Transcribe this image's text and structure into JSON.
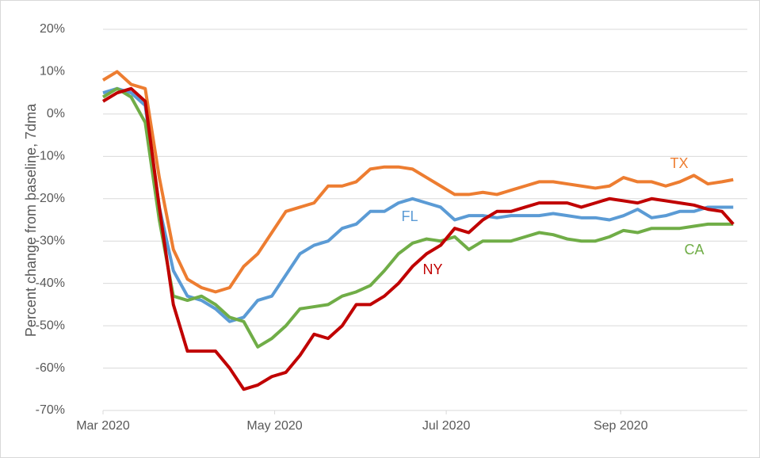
{
  "chart_data": {
    "type": "line",
    "y_label": "Percent change from baseline, 7dma",
    "x": [
      0,
      5,
      10,
      15,
      20,
      25,
      30,
      35,
      40,
      45,
      50,
      55,
      60,
      65,
      70,
      75,
      80,
      85,
      90,
      95,
      100,
      105,
      110,
      115,
      120,
      125,
      130,
      135,
      140,
      145,
      150,
      155,
      160,
      165,
      170,
      175,
      180,
      185,
      190,
      195,
      200,
      205,
      210,
      215,
      220,
      224
    ],
    "xlim": [
      0,
      229
    ],
    "xticks": [
      {
        "value": 0,
        "label": "Mar 2020"
      },
      {
        "value": 61,
        "label": "May 2020"
      },
      {
        "value": 122,
        "label": "Jul 2020"
      },
      {
        "value": 184,
        "label": "Sep 2020"
      }
    ],
    "ylim": [
      -70,
      20
    ],
    "yticks": [
      {
        "value": -70,
        "label": "-70%"
      },
      {
        "value": -60,
        "label": "-60%"
      },
      {
        "value": -50,
        "label": "-50%"
      },
      {
        "value": -40,
        "label": "-40%"
      },
      {
        "value": -30,
        "label": "-30%"
      },
      {
        "value": -20,
        "label": "-20%"
      },
      {
        "value": -10,
        "label": "-10%"
      },
      {
        "value": 0,
        "label": "0%"
      },
      {
        "value": 10,
        "label": "10%"
      },
      {
        "value": 20,
        "label": "20%"
      }
    ],
    "grid": true,
    "series": [
      {
        "name": "TX",
        "color": "#ed7d31",
        "values": [
          8,
          10,
          7,
          6,
          -15,
          -32,
          -39,
          -41,
          -42,
          -41,
          -36,
          -33,
          -28,
          -23,
          -22,
          -21,
          -17,
          -17,
          -16,
          -13,
          -12.5,
          -12.5,
          -13,
          -15,
          -17,
          -19,
          -19,
          -18.5,
          -19,
          -18,
          -17,
          -16,
          -16,
          -16.5,
          -17,
          -17.5,
          -17,
          -15,
          -16,
          -16,
          -17,
          -16,
          -14.5,
          -16.5,
          -16,
          -15.5
        ]
      },
      {
        "name": "FL",
        "color": "#5b9bd5",
        "values": [
          5,
          6,
          5,
          2,
          -22,
          -37,
          -43,
          -44,
          -46,
          -49,
          -48,
          -44,
          -43,
          -38,
          -33,
          -31,
          -30,
          -27,
          -26,
          -23,
          -23,
          -21,
          -20,
          -21,
          -22,
          -25,
          -24,
          -24,
          -24.5,
          -24,
          -24,
          -24,
          -23.5,
          -24,
          -24.5,
          -24.5,
          -25,
          -24,
          -22.5,
          -24.5,
          -24,
          -23,
          -23,
          -22,
          -22,
          -22
        ]
      },
      {
        "name": "CA",
        "color": "#70ad47",
        "values": [
          4,
          6,
          4,
          -2,
          -25,
          -43,
          -44,
          -43,
          -45,
          -48,
          -49,
          -55,
          -53,
          -50,
          -46,
          -45.5,
          -45,
          -43,
          -42,
          -40.5,
          -37,
          -33,
          -30.5,
          -29.5,
          -30,
          -29,
          -32,
          -30,
          -30,
          -30,
          -29,
          -28,
          -28.5,
          -29.5,
          -30,
          -30,
          -29,
          -27.5,
          -28,
          -27,
          -27,
          -27,
          -26.5,
          -26,
          -26,
          -26
        ]
      },
      {
        "name": "NY",
        "color": "#c00000",
        "values": [
          3,
          5,
          6,
          3,
          -22,
          -45,
          -56,
          -56,
          -56,
          -60,
          -65,
          -64,
          -62,
          -61,
          -57,
          -52,
          -53,
          -50,
          -45,
          -45,
          -43,
          -40,
          -36,
          -33,
          -31,
          -27,
          -28,
          -25,
          -23,
          -23,
          -22,
          -21,
          -21,
          -21,
          -22,
          -21,
          -20,
          -20.5,
          -21,
          -20,
          -20.5,
          -21,
          -21.5,
          -22.5,
          -23,
          -26
        ]
      }
    ]
  }
}
